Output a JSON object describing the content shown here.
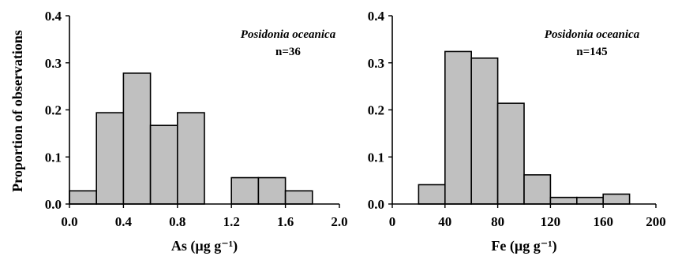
{
  "figure": {
    "ylabel": "Proportion of observations"
  },
  "chart_data": [
    {
      "type": "bar",
      "title": "",
      "annotation": {
        "species": "Posidonia oceanica",
        "n": "n=36"
      },
      "xlabel": "As (µg g⁻¹)",
      "ylabel": "Proportion of observations",
      "xlim": [
        0.0,
        2.0
      ],
      "ylim": [
        0.0,
        0.4
      ],
      "xticks": [
        "0.0",
        "0.4",
        "0.8",
        "1.2",
        "1.6",
        "2.0"
      ],
      "yticks": [
        "0.0",
        "0.1",
        "0.2",
        "0.3",
        "0.4"
      ],
      "bin_width": 0.2,
      "bin_starts": [
        0.0,
        0.2,
        0.4,
        0.6,
        0.8,
        1.0,
        1.2,
        1.4,
        1.6
      ],
      "values": [
        0.028,
        0.194,
        0.278,
        0.167,
        0.194,
        0.0,
        0.056,
        0.056,
        0.028
      ],
      "bar_color": "#c0c0c0"
    },
    {
      "type": "bar",
      "title": "",
      "annotation": {
        "species": "Posidonia oceanica",
        "n": "n=145"
      },
      "xlabel": "Fe (µg g⁻¹)",
      "ylabel": "",
      "xlim": [
        0,
        200
      ],
      "ylim": [
        0.0,
        0.4
      ],
      "xticks": [
        "0",
        "40",
        "80",
        "120",
        "160",
        "200"
      ],
      "yticks": [
        "0.0",
        "0.1",
        "0.2",
        "0.3",
        "0.4"
      ],
      "bin_width": 20,
      "bin_starts": [
        20,
        40,
        60,
        80,
        100,
        120,
        140,
        160
      ],
      "values": [
        0.041,
        0.324,
        0.31,
        0.214,
        0.062,
        0.014,
        0.014,
        0.021
      ],
      "bar_color": "#c0c0c0"
    }
  ]
}
